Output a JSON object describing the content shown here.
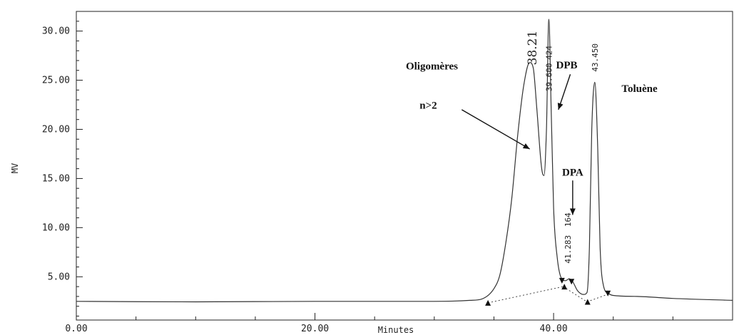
{
  "chart_data": {
    "type": "line",
    "xlabel": "Minutes",
    "ylabel": "MV",
    "xlim": [
      0,
      55
    ],
    "ylim": [
      0.6,
      32
    ],
    "x_ticks": [
      {
        "value": 0,
        "label": "0.00"
      },
      {
        "value": 20,
        "label": "20.00"
      },
      {
        "value": 40,
        "label": "40.00"
      }
    ],
    "y_ticks": [
      {
        "value": 5,
        "label": "5.00"
      },
      {
        "value": 10,
        "label": "10.00"
      },
      {
        "value": 15,
        "label": "15.00"
      },
      {
        "value": 20,
        "label": "20.00"
      },
      {
        "value": 25,
        "label": "25.00"
      },
      {
        "value": 30,
        "label": "30.00"
      }
    ],
    "grid": false,
    "series": [
      {
        "x": [
          0,
          10,
          20,
          30,
          33,
          34,
          35,
          35.5,
          36,
          36.5,
          37,
          37.5,
          38,
          38.3,
          38.6,
          39,
          39.2,
          39.4,
          39.6,
          39.8,
          40,
          40.3,
          40.6,
          41,
          41.3,
          41.6,
          42,
          42.5,
          42.8,
          43,
          43.2,
          43.45,
          43.7,
          43.9,
          44.2,
          44.6,
          45,
          47,
          50,
          55
        ],
        "y": [
          2.5,
          2.45,
          2.5,
          2.5,
          2.6,
          2.75,
          3.8,
          5.2,
          8.5,
          13,
          19.5,
          24.5,
          26.8,
          26.2,
          22,
          16,
          15.3,
          20,
          31.2,
          22,
          12,
          7,
          5,
          4.6,
          4.8,
          4.5,
          3.6,
          3.2,
          3.4,
          8,
          20,
          24.8,
          18,
          8,
          4,
          3.3,
          3.1,
          3,
          2.8,
          2.6
        ]
      }
    ],
    "baseline_segments": [
      {
        "x": [
          34.5,
          40.8
        ],
        "y": [
          2.35,
          4.0
        ]
      },
      {
        "x": [
          40.8,
          42.8
        ],
        "y": [
          4.0,
          2.45
        ]
      },
      {
        "x": [
          42.8,
          44.5
        ],
        "y": [
          2.45,
          3.2
        ]
      }
    ],
    "markers": [
      {
        "x": 34.5,
        "y": 2.35,
        "shape": "up"
      },
      {
        "x": 40.7,
        "y": 4.6,
        "shape": "down"
      },
      {
        "x": 40.9,
        "y": 4.0,
        "shape": "up"
      },
      {
        "x": 41.5,
        "y": 4.5,
        "shape": "down"
      },
      {
        "x": 42.85,
        "y": 2.45,
        "shape": "up"
      },
      {
        "x": 44.55,
        "y": 3.3,
        "shape": "down"
      }
    ],
    "peak_labels": [
      {
        "text": "39.600",
        "x": 39.6,
        "y": 25.3
      },
      {
        "text": "424",
        "x": 39.6,
        "y": 27.8
      },
      {
        "text": "41.283",
        "x": 41.2,
        "y": 7.8
      },
      {
        "text": "164",
        "x": 41.2,
        "y": 10.8
      },
      {
        "text": "43.450",
        "x": 43.45,
        "y": 27.3
      }
    ],
    "handwritten_label": {
      "text": "38.21",
      "x": 38.2,
      "y": 28.3
    },
    "annotations": [
      {
        "text": "Oligomères",
        "x": 29.8,
        "y": 26.1,
        "anchor": "middle"
      },
      {
        "text": "n>2",
        "x": 29.5,
        "y": 22.1,
        "anchor": "middle"
      },
      {
        "text": "DPB",
        "x": 41.1,
        "y": 26.2,
        "anchor": "middle"
      },
      {
        "text": "Toluène",
        "x": 47.2,
        "y": 23.8,
        "anchor": "middle"
      },
      {
        "text": "DPA",
        "x": 41.6,
        "y": 15.3,
        "anchor": "middle"
      }
    ],
    "arrows": [
      {
        "from": [
          32.3,
          22.0
        ],
        "to": [
          38.0,
          18.0
        ]
      },
      {
        "from": [
          41.4,
          25.6
        ],
        "to": [
          40.4,
          22.0
        ]
      },
      {
        "from": [
          41.6,
          14.8
        ],
        "to": [
          41.6,
          11.3
        ]
      }
    ]
  }
}
